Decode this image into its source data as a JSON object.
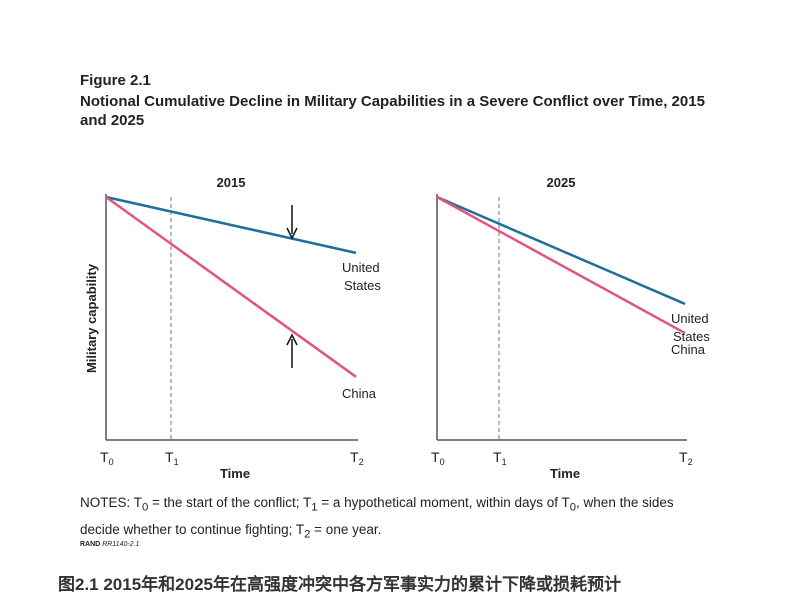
{
  "figure_label": "Figure 2.1",
  "title": "Notional Cumulative Decline in Military Capabilities in a Severe Conflict over Time, 2015 and 2025",
  "notes": "NOTES: T0 = the start of the conflict; T1 = a hypothetical moment, within days of T0, when the sides decide whether to continue fighting; T2 = one year.",
  "source": {
    "org": "RAND",
    "id": "RR1140-2.1"
  },
  "caption_cn": "图2.1 2015年和2025年在高强度冲突中各方军事实力的累计下降或损耗预计",
  "chart_data": [
    {
      "type": "line",
      "title": "2015",
      "xlabel": "Time",
      "ylabel": "Military capability",
      "xticks": [
        "T0",
        "T1",
        "T2"
      ],
      "xtick_values": [
        0,
        0.26,
        1
      ],
      "ylim": [
        0,
        100
      ],
      "xlim": [
        0,
        1
      ],
      "series": [
        {
          "name": "United States",
          "color": "#1f6e9c",
          "x": [
            0,
            1
          ],
          "y": [
            100,
            77
          ]
        },
        {
          "name": "China",
          "color": "#e0557f",
          "x": [
            0,
            1
          ],
          "y": [
            100,
            26
          ]
        }
      ],
      "annotations": [
        "gap arrows at ~0.74 time indicating US–China capability gap"
      ]
    },
    {
      "type": "line",
      "title": "2025",
      "xlabel": "Time",
      "ylabel": "",
      "xticks": [
        "T0",
        "T1",
        "T2"
      ],
      "xtick_values": [
        0,
        0.25,
        1
      ],
      "ylim": [
        0,
        100
      ],
      "xlim": [
        0,
        1
      ],
      "series": [
        {
          "name": "United States",
          "color": "#1f6e9c",
          "x": [
            0,
            1
          ],
          "y": [
            100,
            56
          ]
        },
        {
          "name": "China",
          "color": "#e0557f",
          "x": [
            0,
            1
          ],
          "y": [
            100,
            44
          ]
        }
      ]
    }
  ]
}
